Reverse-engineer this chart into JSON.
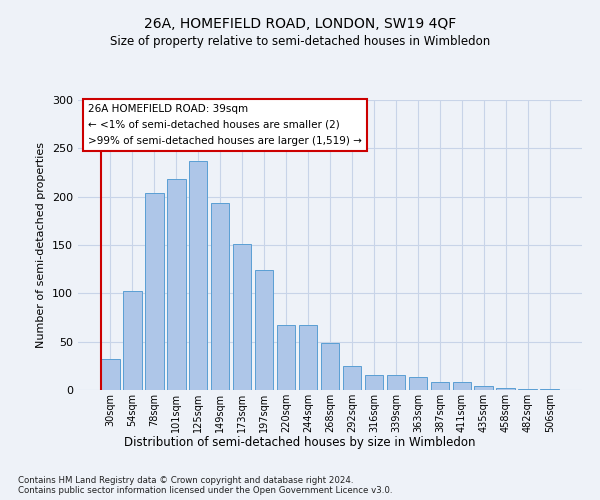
{
  "title1": "26A, HOMEFIELD ROAD, LONDON, SW19 4QF",
  "title2": "Size of property relative to semi-detached houses in Wimbledon",
  "xlabel": "Distribution of semi-detached houses by size in Wimbledon",
  "ylabel": "Number of semi-detached properties",
  "footnote": "Contains HM Land Registry data © Crown copyright and database right 2024.\nContains public sector information licensed under the Open Government Licence v3.0.",
  "annotation_title": "26A HOMEFIELD ROAD: 39sqm",
  "annotation_line1": "← <1% of semi-detached houses are smaller (2)",
  "annotation_line2": ">99% of semi-detached houses are larger (1,519) →",
  "bar_labels": [
    "30sqm",
    "54sqm",
    "78sqm",
    "101sqm",
    "125sqm",
    "149sqm",
    "173sqm",
    "197sqm",
    "220sqm",
    "244sqm",
    "268sqm",
    "292sqm",
    "316sqm",
    "339sqm",
    "363sqm",
    "387sqm",
    "411sqm",
    "435sqm",
    "458sqm",
    "482sqm",
    "506sqm"
  ],
  "bar_values": [
    32,
    102,
    204,
    218,
    237,
    193,
    151,
    124,
    67,
    67,
    49,
    25,
    16,
    16,
    13,
    8,
    8,
    4,
    2,
    1,
    1
  ],
  "bar_color": "#aec6e8",
  "bar_edge_color": "#5a9fd4",
  "annotation_box_color": "#ffffff",
  "annotation_box_edge_color": "#cc0000",
  "red_line_color": "#cc0000",
  "grid_color": "#c8d4e8",
  "background_color": "#eef2f8",
  "ylim": [
    0,
    300
  ],
  "yticks": [
    0,
    50,
    100,
    150,
    200,
    250,
    300
  ]
}
